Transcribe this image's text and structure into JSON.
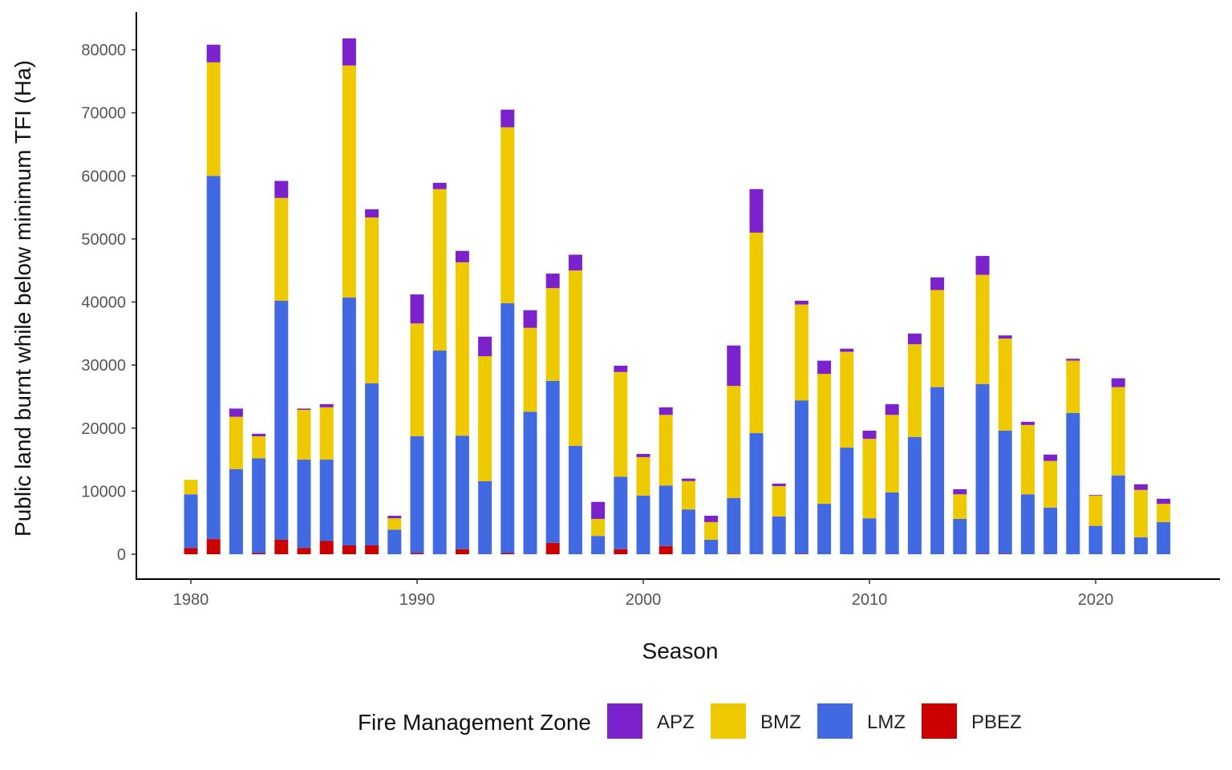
{
  "chart_data": {
    "type": "bar",
    "stacked": true,
    "xlabel": "Season",
    "ylabel": "Public land burnt while below minimum TFI (Ha)",
    "ylim": [
      0,
      82000
    ],
    "xlim": [
      1978,
      2025
    ],
    "yticks": [
      0,
      10000,
      20000,
      30000,
      40000,
      50000,
      60000,
      70000,
      80000
    ],
    "xticks": [
      1980,
      1990,
      2000,
      2010,
      2020
    ],
    "grid": false,
    "legend": {
      "title": "Fire Management Zone",
      "position": "bottom"
    },
    "categories": [
      1980,
      1981,
      1982,
      1983,
      1984,
      1985,
      1986,
      1987,
      1988,
      1989,
      1990,
      1991,
      1992,
      1993,
      1994,
      1995,
      1996,
      1997,
      1998,
      1999,
      2000,
      2001,
      2002,
      2003,
      2004,
      2005,
      2006,
      2007,
      2008,
      2009,
      2010,
      2011,
      2012,
      2013,
      2014,
      2015,
      2016,
      2017,
      2018,
      2019,
      2020,
      2021,
      2022,
      2023
    ],
    "series": [
      {
        "name": "PBEZ",
        "color": "#CD0000",
        "values": [
          1000,
          2400,
          0,
          200,
          2300,
          1000,
          2100,
          1400,
          1400,
          0,
          200,
          0,
          800,
          0,
          200,
          0,
          1800,
          0,
          0,
          800,
          0,
          1300,
          0,
          0,
          100,
          0,
          0,
          100,
          0,
          0,
          0,
          0,
          0,
          0,
          0,
          100,
          100,
          0,
          0,
          0,
          0,
          0,
          0,
          0
        ]
      },
      {
        "name": "LMZ",
        "color": "#4169E1",
        "values": [
          8500,
          57600,
          13500,
          15000,
          37900,
          14000,
          12900,
          39300,
          25700,
          3900,
          18500,
          32300,
          18000,
          11600,
          39600,
          22600,
          25700,
          17200,
          2900,
          11500,
          9300,
          9600,
          7100,
          2300,
          8800,
          19200,
          6000,
          24300,
          8000,
          16900,
          5700,
          9800,
          18600,
          26500,
          5600,
          26900,
          19500,
          9500,
          7400,
          22400,
          4500,
          12500,
          2700,
          5100
        ]
      },
      {
        "name": "BMZ",
        "color": "#EEC900",
        "values": [
          2300,
          18000,
          8300,
          3500,
          16300,
          7900,
          8300,
          36800,
          26300,
          1800,
          17900,
          25600,
          27500,
          19800,
          27900,
          13300,
          14700,
          27800,
          2700,
          16600,
          6100,
          11200,
          4500,
          2800,
          17800,
          31800,
          4800,
          15200,
          20600,
          15200,
          12600,
          12300,
          14700,
          15400,
          3900,
          17300,
          14600,
          11000,
          7400,
          8300,
          4800,
          14000,
          7500,
          2900
        ]
      },
      {
        "name": "APZ",
        "color": "#7B22CC",
        "values": [
          0,
          2800,
          1300,
          400,
          2700,
          200,
          500,
          4300,
          1300,
          400,
          4600,
          1000,
          1800,
          3100,
          2800,
          2800,
          2300,
          2500,
          2700,
          1000,
          500,
          1200,
          400,
          1000,
          6400,
          6900,
          400,
          600,
          2100,
          500,
          1300,
          1700,
          1700,
          2000,
          800,
          3000,
          500,
          500,
          1000,
          300,
          100,
          1400,
          900,
          800
        ]
      }
    ]
  },
  "legend_order": [
    "APZ",
    "BMZ",
    "LMZ",
    "PBEZ"
  ]
}
